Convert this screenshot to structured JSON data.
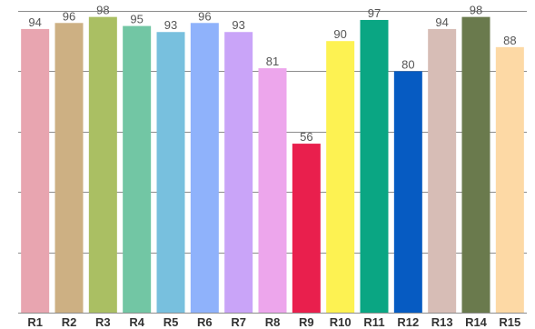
{
  "chart_data": {
    "type": "bar",
    "categories": [
      "R1",
      "R2",
      "R3",
      "R4",
      "R5",
      "R6",
      "R7",
      "R8",
      "R9",
      "R10",
      "R11",
      "R12",
      "R13",
      "R14",
      "R15"
    ],
    "values": [
      94,
      96,
      98,
      95,
      93,
      96,
      93,
      81,
      56,
      90,
      97,
      80,
      94,
      98,
      88
    ],
    "colors": [
      "#e8a5b0",
      "#cdb083",
      "#aabf63",
      "#72c6a4",
      "#78c0de",
      "#8fb2fb",
      "#c9a4f8",
      "#eda6ec",
      "#e91f4d",
      "#fdf252",
      "#0aa683",
      "#065bc2",
      "#d7bdb6",
      "#6a7a4d",
      "#fdd9a5"
    ],
    "ylim": [
      0,
      100
    ],
    "ygrid_step": 20,
    "grid": true,
    "title": "",
    "xlabel": "",
    "ylabel": ""
  }
}
